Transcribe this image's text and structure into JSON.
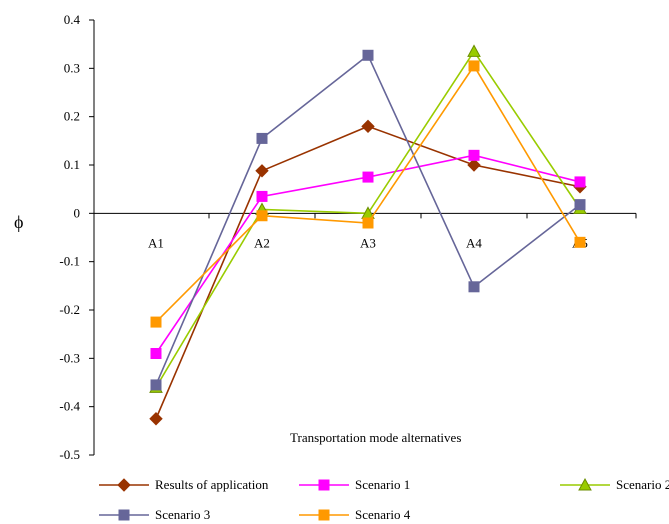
{
  "chart_data": {
    "type": "line",
    "title": "",
    "xlabel": "Transportation mode alternatives",
    "ylabel": "ϕ",
    "categories": [
      "A1",
      "A2",
      "A3",
      "A4",
      "A5"
    ],
    "ylim": [
      -0.5,
      0.4
    ],
    "yticks": [
      0.4,
      0.3,
      0.2,
      0.1,
      0,
      -0.1,
      -0.2,
      -0.3,
      -0.4,
      -0.5
    ],
    "ytick_labels": [
      "0.4",
      "0.3",
      "0.2",
      "0.1",
      "0",
      "-0.1",
      "-0.2",
      "-0.3",
      "-0.4",
      "-0.5"
    ],
    "grid": false,
    "legend_position": "bottom",
    "series": [
      {
        "name": "Results of application",
        "color": "#993300",
        "marker": "diamond",
        "values": [
          -0.425,
          0.088,
          0.18,
          0.1,
          0.055
        ]
      },
      {
        "name": "Scenario 1",
        "color": "#ff00ff",
        "marker": "square",
        "values": [
          -0.29,
          0.035,
          0.075,
          0.12,
          0.065
        ]
      },
      {
        "name": "Scenario 2",
        "color": "#99cc00",
        "marker": "triangle",
        "values": [
          -0.36,
          0.008,
          0.0,
          0.335,
          0.01
        ]
      },
      {
        "name": "Scenario 3",
        "color": "#666699",
        "marker": "square",
        "values": [
          -0.355,
          0.155,
          0.327,
          -0.152,
          0.018
        ]
      },
      {
        "name": "Scenario 4",
        "color": "#ff9900",
        "marker": "square",
        "values": [
          -0.225,
          -0.005,
          -0.02,
          0.305,
          -0.06
        ]
      }
    ]
  }
}
